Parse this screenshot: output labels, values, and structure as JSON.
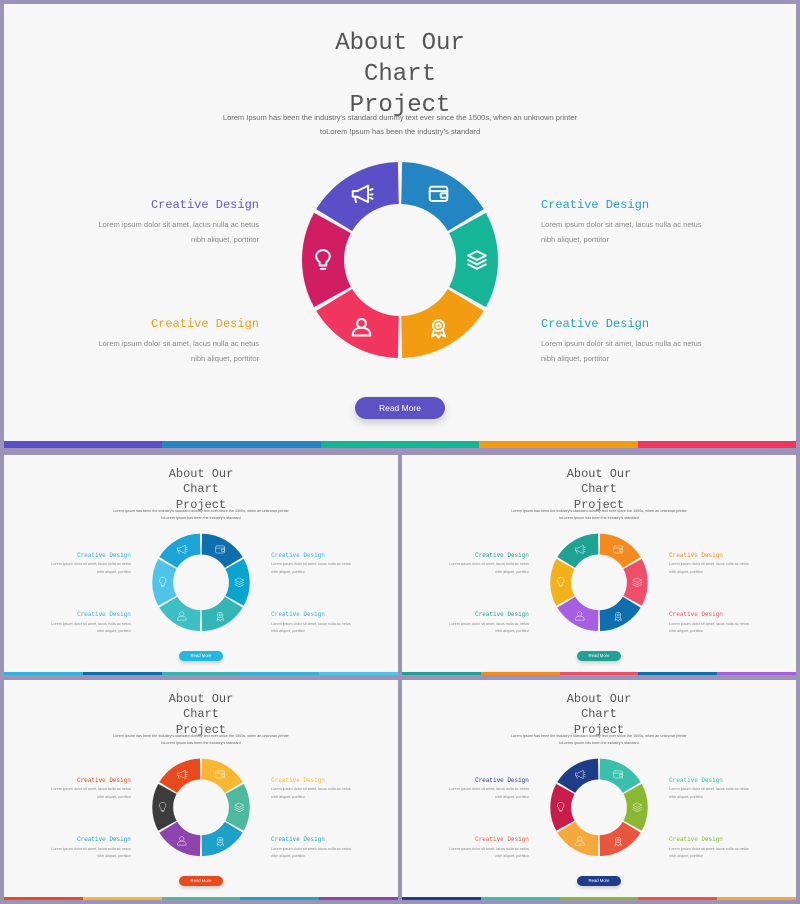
{
  "text": {
    "title": "About Our Chart Project",
    "subtitle_line1": "Lorem Ipsum has been the industry's standard dummy text ever since the 1500s, when an unknown printer",
    "subtitle_line2": "toLorem Ipsum has been the industry's standard",
    "block_title": "Creative Design",
    "body_line1": "Lorem  ipsum dolor sit amet, lacus nulla ac netus",
    "body_line2": "nibh aliquet, porttitor",
    "button": "Read More",
    "icons": [
      "megaphone-icon",
      "wallet-icon",
      "layers-icon",
      "medal-icon",
      "user-icon",
      "lightbulb-icon"
    ]
  },
  "variants": [
    {
      "id": "variant-purple",
      "segments": [
        "#5a4fc7",
        "#2385c1",
        "#16b597",
        "#f39c12",
        "#f0355e",
        "#d11e62"
      ],
      "block_colors": [
        "#6559c9",
        "#23a2c0",
        "#f39c12",
        "#23a2c0"
      ],
      "button_color": "#5d52c4",
      "bar": [
        "#5a4fc7",
        "#2385c1",
        "#16b597",
        "#f39c12",
        "#f0355e"
      ]
    },
    {
      "id": "variant-cyan",
      "segments": [
        "#1ca4d6",
        "#0f6fae",
        "#0aa5cf",
        "#34b5b5",
        "#3ebfc3",
        "#4ec4e8"
      ],
      "block_colors": [
        "#2fb3dc",
        "#2fb3dc",
        "#2fb3dc",
        "#2fb3dc"
      ],
      "button_color": "#22b8e0",
      "bar": [
        "#2fb3dc",
        "#0f6fae",
        "#34b5b5",
        "#2fb3dc",
        "#4ec4e8"
      ]
    },
    {
      "id": "variant-teal-orange",
      "segments": [
        "#1fa193",
        "#f58a1f",
        "#ef4e6b",
        "#0f6fae",
        "#a55fe0",
        "#f4b21a"
      ],
      "block_colors": [
        "#1fa193",
        "#f58a1f",
        "#1fa193",
        "#ef4e6b"
      ],
      "button_color": "#1fa193",
      "bar": [
        "#1fa193",
        "#f58a1f",
        "#ef4e6b",
        "#0f6fae",
        "#a55fe0"
      ]
    },
    {
      "id": "variant-warm",
      "segments": [
        "#e8491d",
        "#f7b733",
        "#4fb99f",
        "#1ea0c8",
        "#8e44ad",
        "#3c3c3c"
      ],
      "block_colors": [
        "#e8491d",
        "#f7b733",
        "#1ea0c8",
        "#1ea0c8"
      ],
      "button_color": "#e8491d",
      "bar": [
        "#e8491d",
        "#f7b733",
        "#4fb99f",
        "#1ea0c8",
        "#8e44ad"
      ]
    },
    {
      "id": "variant-navy",
      "segments": [
        "#1f3c88",
        "#3bbfad",
        "#8ab833",
        "#e8563f",
        "#f4a93b",
        "#c81d4a"
      ],
      "block_colors": [
        "#1f3c88",
        "#3bbfad",
        "#e8563f",
        "#8ab833"
      ],
      "button_color": "#1f3c88",
      "bar": [
        "#1f3c88",
        "#3bbfad",
        "#8ab833",
        "#e8563f",
        "#f4a93b"
      ]
    }
  ]
}
